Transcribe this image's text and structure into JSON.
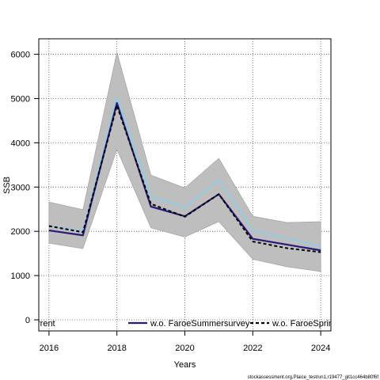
{
  "chart_data": {
    "type": "line",
    "title": "",
    "xlabel": "Years",
    "ylabel": "SSB",
    "xlim": [
      2015.7,
      2024.3
    ],
    "ylim": [
      -250,
      6350
    ],
    "x_ticks": [
      2016,
      2018,
      2020,
      2022,
      2024
    ],
    "x_tick_labels": [
      "2016",
      "2018",
      "2020",
      "2022",
      "2024"
    ],
    "y_ticks": [
      0,
      1000,
      2000,
      3000,
      4000,
      5000,
      6000
    ],
    "y_tick_labels": [
      "0",
      "1000",
      "2000",
      "3000",
      "4000",
      "5000",
      "6000"
    ],
    "grid": true,
    "x": [
      2016,
      2017,
      2018,
      2019,
      2020,
      2021,
      2022,
      2023,
      2024
    ],
    "band": {
      "lower": [
        1730,
        1610,
        3850,
        2080,
        1870,
        2220,
        1370,
        1200,
        1090
      ],
      "upper": [
        2660,
        2490,
        6050,
        3270,
        2980,
        3650,
        2340,
        2200,
        2220
      ],
      "color": "#bebebe"
    },
    "series": [
      {
        "name": "",
        "color": "#000000",
        "dash": true,
        "values": [
          2120,
          1980,
          4840,
          2620,
          2330,
          2840,
          1770,
          1620,
          1530
        ]
      },
      {
        "name": "w.o. FaroeSummersurvey",
        "color": "#2a1a7a",
        "dash": false,
        "values": [
          2020,
          1910,
          4900,
          2560,
          2340,
          2840,
          1830,
          1700,
          1570
        ]
      },
      {
        "name": "w.o. FaroeSpring",
        "color": "#87ceeb",
        "dash": false,
        "values": [
          2110,
          2010,
          5020,
          2790,
          2540,
          3160,
          2020,
          1840,
          1660
        ]
      }
    ],
    "legend": {
      "placement": "bottom",
      "entries": [
        "rrent",
        "w.o. FaroeSummersurvey",
        "w.o. FaroeSpring"
      ]
    }
  },
  "footnote": "stockassessment.org,Plaice_testrun1,r19477_git1cc464b80f6f"
}
